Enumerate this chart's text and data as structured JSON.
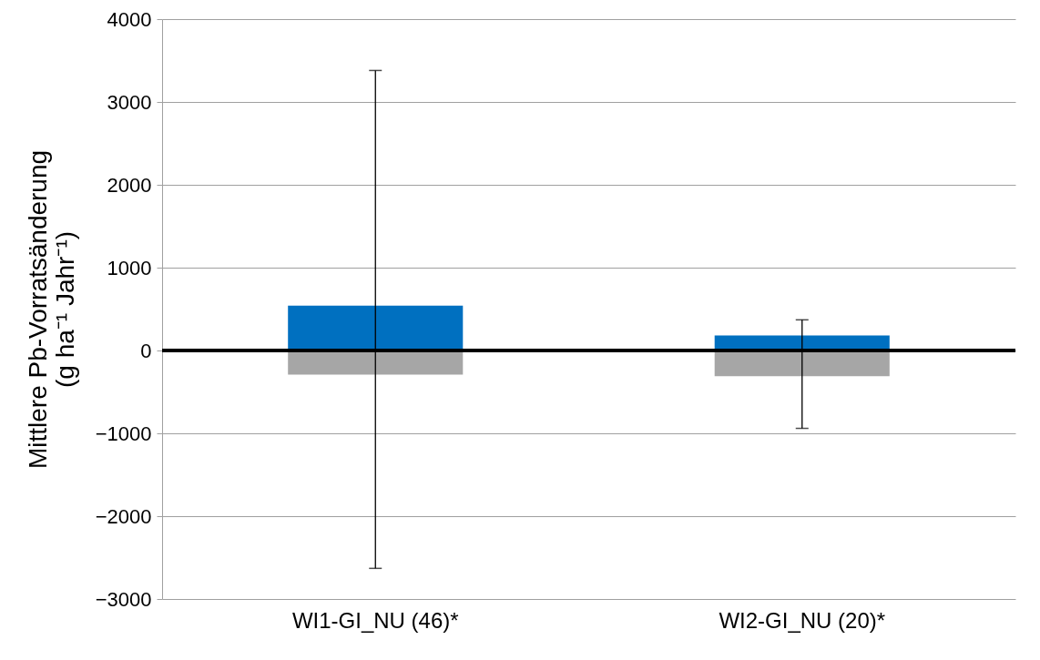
{
  "chart_data": {
    "type": "bar",
    "ylabel": "Mittlere Pb-Vorratsänderung\n(g ha⁻¹ Jahr⁻¹)",
    "categories": [
      "WI1-GI_NU (46)*",
      "WI2-GI_NU (20)*"
    ],
    "series": [
      {
        "color": "#0070c0",
        "values": [
          540,
          180
        ],
        "errors": [
          [
            -2630,
            3380
          ],
          [
            -940,
            370
          ]
        ]
      },
      {
        "color": "#a6a6a6",
        "values": [
          -290,
          -310
        ]
      }
    ],
    "stacked": true,
    "ylim": [
      -3000,
      4000
    ],
    "yticks": [
      -3000,
      -2000,
      -1000,
      0,
      1000,
      2000,
      3000,
      4000
    ],
    "grid": "y",
    "ref_lines": [
      {
        "axis": "y",
        "value": 0,
        "color": "#000000"
      }
    ]
  }
}
